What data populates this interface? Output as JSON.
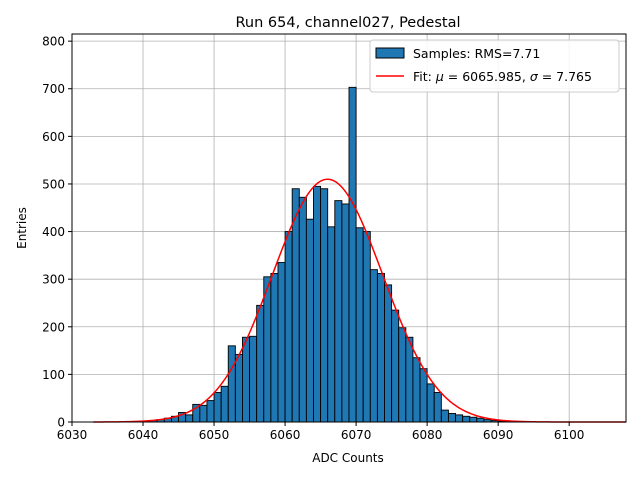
{
  "chart_data": {
    "type": "bar",
    "title": "Run 654, channel027, Pedestal",
    "xlabel": "ADC Counts",
    "ylabel": "Entries",
    "xlim": [
      6030,
      6108
    ],
    "ylim": [
      0,
      815
    ],
    "x_ticks": [
      6030,
      6040,
      6050,
      6060,
      6070,
      6080,
      6090,
      6100
    ],
    "y_ticks": [
      0,
      100,
      200,
      300,
      400,
      500,
      600,
      700,
      800
    ],
    "grid": true,
    "legend_position": "top-right",
    "colors": {
      "bars": "#1f77b4",
      "bar_edge": "#000000",
      "fit": "#ff0000",
      "grid": "#b0b0b0"
    },
    "histogram": {
      "name": "Samples: RMS=7.71",
      "bin_start": 6040,
      "bin_width": 1,
      "counts": [
        2,
        3,
        5,
        8,
        12,
        20,
        15,
        37,
        35,
        45,
        62,
        75,
        160,
        142,
        178,
        180,
        245,
        305,
        312,
        335,
        400,
        490,
        472,
        426,
        495,
        490,
        410,
        465,
        458,
        703,
        408,
        400,
        320,
        312,
        288,
        235,
        198,
        178,
        135,
        112,
        80,
        62,
        25,
        18,
        15,
        12,
        10,
        8,
        5,
        3,
        2,
        1
      ]
    },
    "fit": {
      "name_prefix": "Fit: ",
      "name_mu": "μ",
      "name_mu_value": " = 6065.985, ",
      "name_sigma": "σ",
      "name_sigma_value": " = 7.765",
      "mu": 6065.985,
      "sigma": 7.765,
      "amplitude": 510,
      "x_range": [
        6033,
        6108
      ]
    }
  }
}
